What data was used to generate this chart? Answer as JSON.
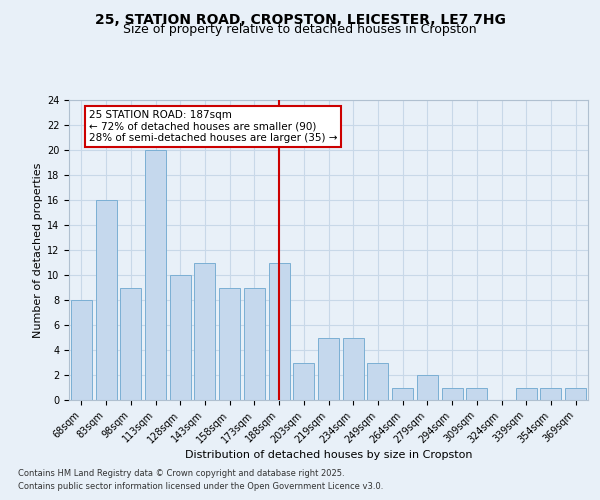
{
  "title1": "25, STATION ROAD, CROPSTON, LEICESTER, LE7 7HG",
  "title2": "Size of property relative to detached houses in Cropston",
  "xlabel": "Distribution of detached houses by size in Cropston",
  "ylabel": "Number of detached properties",
  "categories": [
    "68sqm",
    "83sqm",
    "98sqm",
    "113sqm",
    "128sqm",
    "143sqm",
    "158sqm",
    "173sqm",
    "188sqm",
    "203sqm",
    "219sqm",
    "234sqm",
    "249sqm",
    "264sqm",
    "279sqm",
    "294sqm",
    "309sqm",
    "324sqm",
    "339sqm",
    "354sqm",
    "369sqm"
  ],
  "values": [
    8,
    16,
    9,
    20,
    10,
    11,
    9,
    9,
    11,
    3,
    5,
    5,
    3,
    1,
    2,
    1,
    1,
    0,
    1,
    1,
    1
  ],
  "bar_color": "#c5d8ed",
  "bar_edge_color": "#7bafd4",
  "grid_color": "#c8d8e8",
  "background_color": "#e8f0f8",
  "vline_index": 8,
  "vline_color": "#cc0000",
  "annotation_text": "25 STATION ROAD: 187sqm\n← 72% of detached houses are smaller (90)\n28% of semi-detached houses are larger (35) →",
  "annotation_box_color": "#ffffff",
  "annotation_box_edge": "#cc0000",
  "ylim": [
    0,
    24
  ],
  "yticks": [
    0,
    2,
    4,
    6,
    8,
    10,
    12,
    14,
    16,
    18,
    20,
    22,
    24
  ],
  "footnote1": "Contains HM Land Registry data © Crown copyright and database right 2025.",
  "footnote2": "Contains public sector information licensed under the Open Government Licence v3.0.",
  "title_fontsize": 10,
  "subtitle_fontsize": 9,
  "tick_fontsize": 7,
  "ylabel_fontsize": 8,
  "xlabel_fontsize": 8,
  "annot_fontsize": 7.5,
  "footnote_fontsize": 6
}
